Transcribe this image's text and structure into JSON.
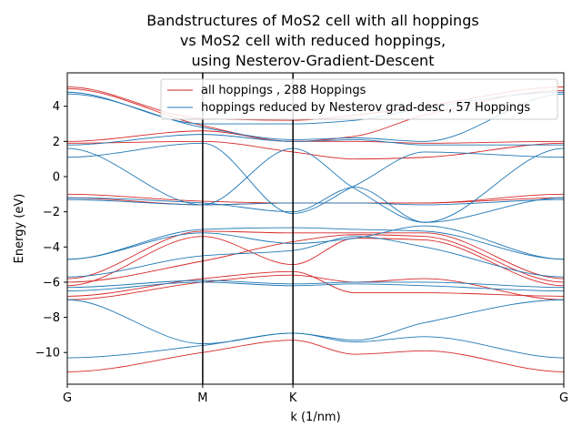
{
  "chart_data": {
    "type": "line",
    "title": [
      "Bandstructures of MoS2 cell with all hoppings",
      "vs MoS2 cell with reduced hoppings,",
      "using Nesterov-Gradient-Descent"
    ],
    "xlabel": "k (1/nm)",
    "ylabel": "Energy (eV)",
    "xlim": [
      0,
      1
    ],
    "ylim": [
      -11.8,
      5.9
    ],
    "xticks": [
      {
        "label": "G",
        "value": 0
      },
      {
        "label": "M",
        "value": 0.2727
      },
      {
        "label": "K",
        "value": 0.4545
      },
      {
        "label": "G",
        "value": 1
      }
    ],
    "yticks": [
      -10,
      -8,
      -6,
      -4,
      -2,
      0,
      2,
      4
    ],
    "grid": false,
    "vlines": [
      0.2727,
      0.4545
    ],
    "legend": {
      "position": "top-right",
      "entries": [
        {
          "label": "all hoppings , 288 Hoppings",
          "color": "#d62728"
        },
        {
          "label": "hoppings reduced by Nesterov grad-desc , 57 Hoppings",
          "color": "#1f77b4"
        }
      ]
    },
    "series": [
      {
        "name": "all hoppings , 288 Hoppings",
        "color": "#d62728",
        "x": [
          0,
          0.2727,
          0.4545,
          0.58,
          0.72,
          1
        ],
        "bands": [
          [
            5.1,
            3.3,
            3.2,
            3.5,
            4.0,
            5.1
          ],
          [
            5.0,
            2.9,
            2.0,
            2.3,
            3.5,
            4.9
          ],
          [
            2.0,
            2.6,
            2.0,
            2.0,
            1.9,
            2.0
          ],
          [
            1.9,
            2.0,
            1.4,
            1.0,
            1.1,
            1.9
          ],
          [
            -1.0,
            -1.4,
            -1.5,
            -1.5,
            -1.5,
            -1.0
          ],
          [
            -1.2,
            -1.6,
            -1.5,
            -1.5,
            -1.5,
            -1.2
          ],
          [
            -5.8,
            -3.1,
            -3.2,
            -3.2,
            -3.2,
            -5.8
          ],
          [
            -6.0,
            -4.8,
            -3.7,
            -3.3,
            -3.4,
            -6.0
          ],
          [
            -6.2,
            -3.4,
            -5.0,
            -3.5,
            -3.6,
            -6.2
          ],
          [
            -6.8,
            -5.8,
            -5.4,
            -6.6,
            -6.6,
            -6.8
          ],
          [
            -7.0,
            -6.0,
            -5.6,
            -6.0,
            -5.8,
            -7.0
          ],
          [
            -11.1,
            -10.0,
            -9.3,
            -10.1,
            -9.9,
            -11.1
          ]
        ]
      },
      {
        "name": "hoppings reduced by Nesterov grad-desc , 57 Hoppings",
        "color": "#1f77b4",
        "x": [
          0,
          0.2727,
          0.4545,
          0.58,
          0.72,
          1
        ],
        "bands": [
          [
            4.8,
            3.0,
            3.0,
            3.2,
            3.9,
            4.8
          ],
          [
            4.7,
            2.8,
            2.1,
            2.2,
            2.0,
            4.7
          ],
          [
            1.8,
            2.4,
            2.0,
            2.1,
            1.8,
            1.8
          ],
          [
            1.1,
            1.9,
            -2.1,
            -0.5,
            1.4,
            1.1
          ],
          [
            1.6,
            -1.6,
            1.6,
            -0.7,
            -2.6,
            1.6
          ],
          [
            -1.2,
            -1.5,
            -2.0,
            -0.6,
            -2.6,
            -1.2
          ],
          [
            -1.3,
            -1.6,
            -1.5,
            -1.5,
            -1.6,
            -1.3
          ],
          [
            -4.7,
            -3.0,
            -2.9,
            -3.0,
            -3.1,
            -4.7
          ],
          [
            -4.7,
            -3.2,
            -3.8,
            -3.5,
            -2.8,
            -4.7
          ],
          [
            -5.7,
            -4.5,
            -4.2,
            -3.4,
            -4.0,
            -5.7
          ],
          [
            -6.3,
            -5.9,
            -6.1,
            -6.0,
            -6.0,
            -6.3
          ],
          [
            -6.5,
            -6.0,
            -6.2,
            -6.1,
            -6.2,
            -6.5
          ],
          [
            -7.0,
            -9.5,
            -8.9,
            -9.3,
            -8.3,
            -7.0
          ],
          [
            -10.3,
            -9.6,
            -8.9,
            -9.4,
            -9.1,
            -10.3
          ]
        ]
      }
    ]
  }
}
